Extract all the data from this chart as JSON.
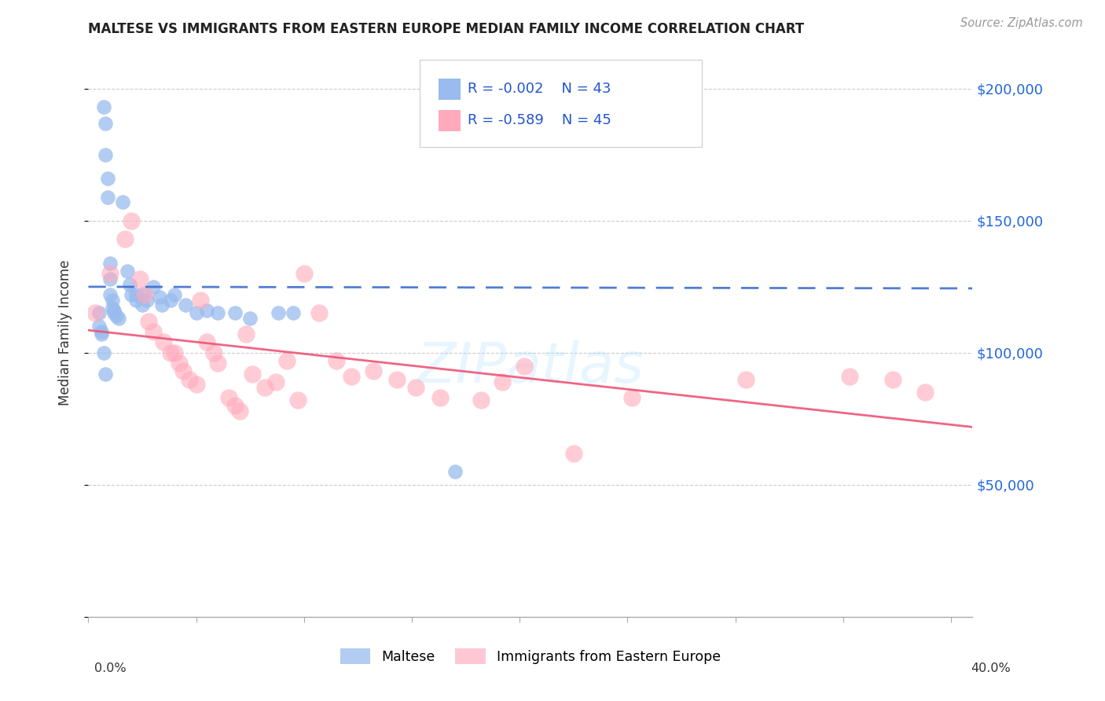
{
  "title": "MALTESE VS IMMIGRANTS FROM EASTERN EUROPE MEDIAN FAMILY INCOME CORRELATION CHART",
  "source": "Source: ZipAtlas.com",
  "ylabel": "Median Family Income",
  "R1": "-0.002",
  "N1": "43",
  "R2": "-0.589",
  "N2": "45",
  "legend_label1": "Maltese",
  "legend_label2": "Immigrants from Eastern Europe",
  "blue_color": "#99BBEE",
  "pink_color": "#FFAABC",
  "blue_line_color": "#3366CC",
  "pink_line_color": "#EE5577",
  "xlim": [
    0.0,
    0.41
  ],
  "ylim": [
    0,
    215000
  ],
  "ytick_vals": [
    0,
    50000,
    100000,
    150000,
    200000
  ],
  "ytick_labels_right": [
    "$50,000",
    "$100,000",
    "$150,000",
    "$200,000"
  ],
  "blue_x": [
    0.007,
    0.008,
    0.008,
    0.009,
    0.009,
    0.01,
    0.01,
    0.01,
    0.011,
    0.011,
    0.012,
    0.012,
    0.013,
    0.014,
    0.016,
    0.018,
    0.019,
    0.02,
    0.022,
    0.022,
    0.025,
    0.025,
    0.027,
    0.03,
    0.033,
    0.034,
    0.038,
    0.04,
    0.045,
    0.05,
    0.055,
    0.06,
    0.068,
    0.075,
    0.088,
    0.095,
    0.005,
    0.005,
    0.006,
    0.006,
    0.007,
    0.008,
    0.17
  ],
  "blue_y": [
    193000,
    187000,
    175000,
    166000,
    159000,
    134000,
    128000,
    122000,
    120000,
    117000,
    116000,
    115000,
    114000,
    113000,
    157000,
    131000,
    126000,
    122000,
    122000,
    120000,
    118000,
    122000,
    120000,
    125000,
    121000,
    118000,
    120000,
    122000,
    118000,
    115000,
    116000,
    115000,
    115000,
    113000,
    115000,
    115000,
    115000,
    110000,
    108000,
    107000,
    100000,
    92000,
    55000
  ],
  "pink_x": [
    0.003,
    0.01,
    0.017,
    0.02,
    0.024,
    0.026,
    0.028,
    0.03,
    0.035,
    0.038,
    0.04,
    0.042,
    0.044,
    0.047,
    0.05,
    0.052,
    0.055,
    0.058,
    0.06,
    0.065,
    0.068,
    0.07,
    0.073,
    0.076,
    0.082,
    0.087,
    0.092,
    0.097,
    0.1,
    0.107,
    0.115,
    0.122,
    0.132,
    0.143,
    0.152,
    0.163,
    0.182,
    0.192,
    0.202,
    0.225,
    0.252,
    0.305,
    0.353,
    0.373,
    0.388
  ],
  "pink_y": [
    115000,
    130000,
    143000,
    150000,
    128000,
    122000,
    112000,
    108000,
    104000,
    100000,
    100000,
    96000,
    93000,
    90000,
    88000,
    120000,
    104000,
    100000,
    96000,
    83000,
    80000,
    78000,
    107000,
    92000,
    87000,
    89000,
    97000,
    82000,
    130000,
    115000,
    97000,
    91000,
    93000,
    90000,
    87000,
    83000,
    82000,
    89000,
    95000,
    62000,
    83000,
    90000,
    91000,
    90000,
    85000
  ]
}
